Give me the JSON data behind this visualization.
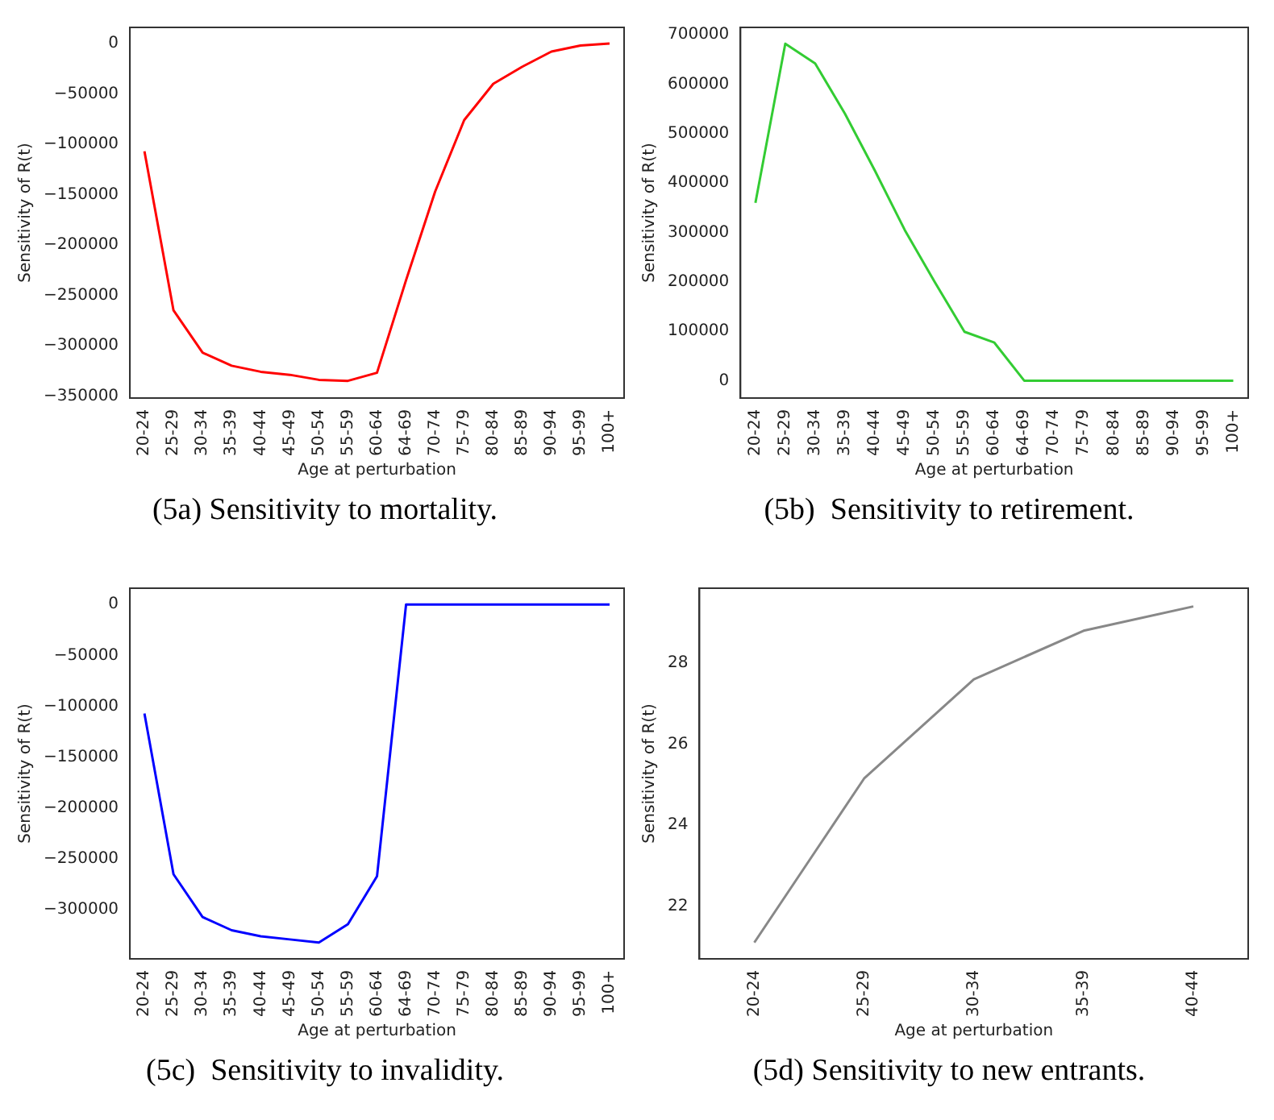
{
  "chart_data": [
    {
      "type": "line",
      "categories": [
        "20-24",
        "25-29",
        "30-34",
        "35-39",
        "40-44",
        "45-49",
        "50-54",
        "55-59",
        "60-64",
        "64-69",
        "70-74",
        "75-79",
        "80-84",
        "85-89",
        "90-94",
        "95-99",
        "100+"
      ],
      "values": [
        -107000,
        -265000,
        -307000,
        -320000,
        -326000,
        -329000,
        -334000,
        -335000,
        -327000,
        -235000,
        -147000,
        -76000,
        -40000,
        -23000,
        -8000,
        -2000,
        0
      ],
      "color": "#ff0000",
      "ylim": [
        -352000,
        16000
      ],
      "yticks": [
        {
          "value": -350000,
          "label": "−350000"
        },
        {
          "value": -300000,
          "label": "−300000"
        },
        {
          "value": -250000,
          "label": "−250000"
        },
        {
          "value": -200000,
          "label": "−200000"
        },
        {
          "value": -150000,
          "label": "−150000"
        },
        {
          "value": -100000,
          "label": "−100000"
        },
        {
          "value": -50000,
          "label": "−50000"
        },
        0
      ],
      "xlabel": "Age at perturbation",
      "ylabel": "Sensitivity of R(t)",
      "annotations": [
        "(5a) Sensitivity to mortality."
      ]
    },
    {
      "type": "line",
      "categories": [
        "20-24",
        "25-29",
        "30-34",
        "35-39",
        "40-44",
        "45-49",
        "50-54",
        "55-59",
        "60-64",
        "64-69",
        "70-74",
        "75-79",
        "80-84",
        "85-89",
        "90-94",
        "95-99",
        "100+"
      ],
      "values": [
        360000,
        682000,
        642000,
        540000,
        425000,
        305000,
        200000,
        99000,
        77000,
        0,
        0,
        0,
        0,
        0,
        0,
        0,
        0
      ],
      "color": "#33cc33",
      "ylim": [
        -35000,
        715000
      ],
      "yticks": [
        0,
        100000,
        200000,
        300000,
        400000,
        500000,
        600000,
        700000
      ],
      "xlabel": "Age at perturbation",
      "ylabel": "Sensitivity of R(t)",
      "annotations": [
        "(5b)  Sensitivity to retirement."
      ]
    },
    {
      "type": "line",
      "categories": [
        "20-24",
        "25-29",
        "30-34",
        "35-39",
        "40-44",
        "45-49",
        "50-54",
        "55-59",
        "60-64",
        "64-69",
        "70-74",
        "75-79",
        "80-84",
        "85-89",
        "90-94",
        "95-99",
        "100+"
      ],
      "values": [
        -107000,
        -265000,
        -307000,
        -320000,
        -326000,
        -329000,
        -332000,
        -314000,
        -267000,
        0,
        0,
        0,
        0,
        0,
        0,
        0,
        0
      ],
      "color": "#0000ff",
      "ylim": [
        -348000,
        16000
      ],
      "yticks": [
        {
          "value": -300000,
          "label": "−300000"
        },
        {
          "value": -250000,
          "label": "−250000"
        },
        {
          "value": -200000,
          "label": "−200000"
        },
        {
          "value": -150000,
          "label": "−150000"
        },
        {
          "value": -100000,
          "label": "−100000"
        },
        {
          "value": -50000,
          "label": "−50000"
        },
        0
      ],
      "xlabel": "Age at perturbation",
      "ylabel": "Sensitivity of R(t)",
      "annotations": [
        "(5c)  Sensitivity to invalidity."
      ]
    },
    {
      "type": "line",
      "categories": [
        "20-24",
        "25-29",
        "30-34",
        "35-39",
        "40-44"
      ],
      "values": [
        21.1,
        25.15,
        27.6,
        28.8,
        29.4
      ],
      "color": "#888888",
      "ylim": [
        20.7,
        29.85
      ],
      "yticks": [
        22,
        24,
        26,
        28
      ],
      "xlabel": "Age at perturbation",
      "ylabel": "Sensitivity of R(t)",
      "annotations": [
        "(5d) Sensitivity to new entrants."
      ]
    }
  ]
}
